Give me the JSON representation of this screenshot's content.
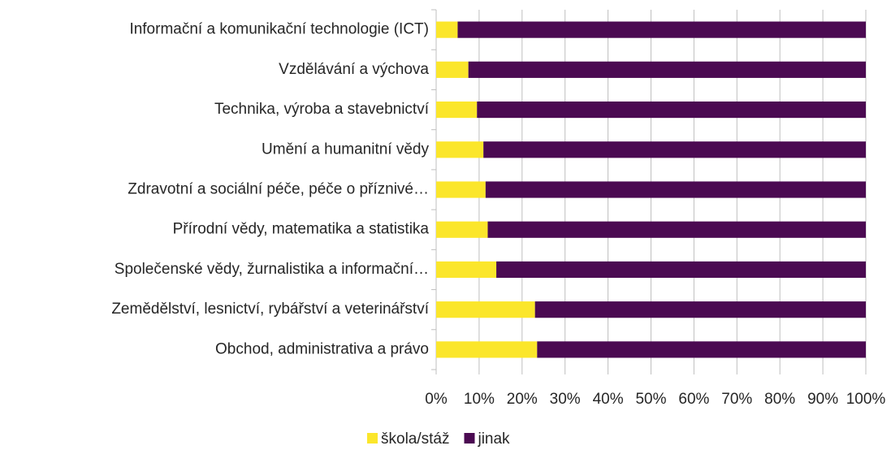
{
  "chart_data": {
    "type": "stacked_bar_horizontal",
    "categories": [
      "Informační a komunikační technologie (ICT)",
      "Vzdělávání a výchova",
      "Technika, výroba a stavebnictví",
      "Umění a humanitní vědy",
      "Zdravotní a sociální péče, péče o příznivé…",
      "Přírodní vědy, matematika a statistika",
      "Společenské vědy, žurnalistika a informační…",
      "Zemědělství, lesnictví, rybářství a veterinářství",
      "Obchod, administrativa a právo"
    ],
    "series": [
      {
        "name": "škola/stáž",
        "color": "#fbe62b",
        "values": [
          5,
          7.5,
          9.5,
          11,
          11.5,
          12,
          14,
          23,
          23.5
        ]
      },
      {
        "name": "jinak",
        "color": "#4b0a52",
        "values": [
          95,
          92.5,
          90.5,
          89,
          88.5,
          88,
          86,
          77,
          76.5
        ]
      }
    ],
    "xlim": [
      0,
      100
    ],
    "xticks": [
      {
        "value": 0,
        "label": "0%"
      },
      {
        "value": 10,
        "label": "10%"
      },
      {
        "value": 20,
        "label": "20%"
      },
      {
        "value": 30,
        "label": "30%"
      },
      {
        "value": 40,
        "label": "40%"
      },
      {
        "value": 50,
        "label": "50%"
      },
      {
        "value": 60,
        "label": "60%"
      },
      {
        "value": 70,
        "label": "70%"
      },
      {
        "value": 80,
        "label": "80%"
      },
      {
        "value": 90,
        "label": "90%"
      },
      {
        "value": 100,
        "label": "100%"
      }
    ],
    "grid": true,
    "legend": "bottom"
  }
}
